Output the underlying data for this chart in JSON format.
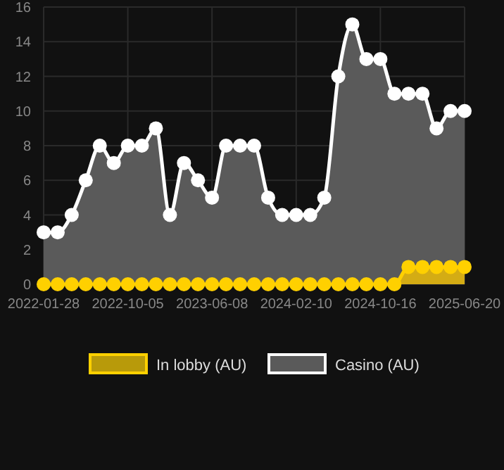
{
  "chart_data": {
    "type": "area",
    "categories": [
      "2022-01-28",
      null,
      null,
      null,
      null,
      null,
      "2022-10-05",
      null,
      null,
      null,
      null,
      null,
      "2023-06-08",
      null,
      null,
      null,
      null,
      null,
      "2024-02-10",
      null,
      null,
      null,
      null,
      null,
      "2024-10-16",
      null,
      null,
      null,
      null,
      null,
      "2025-06-20"
    ],
    "series": [
      {
        "name": "Casino (AU)",
        "color": "#ffffff",
        "values": [
          3,
          3,
          4,
          6,
          8,
          7,
          8,
          8,
          9,
          4,
          7,
          6,
          5,
          8,
          8,
          8,
          5,
          4,
          4,
          4,
          5,
          12,
          15,
          13,
          13,
          11,
          11,
          11,
          9,
          10,
          10
        ]
      },
      {
        "name": "In lobby (AU)",
        "color": "#ffd000",
        "values": [
          0,
          0,
          0,
          0,
          0,
          0,
          0,
          0,
          0,
          0,
          0,
          0,
          0,
          0,
          0,
          0,
          0,
          0,
          0,
          0,
          0,
          0,
          0,
          0,
          0,
          0,
          1,
          1,
          1,
          1,
          1
        ]
      }
    ],
    "ylim": [
      0,
      16
    ],
    "yticks": [
      0,
      2,
      4,
      6,
      8,
      10,
      12,
      14,
      16
    ],
    "grid": true,
    "legend": "bottom",
    "marker": "circle"
  }
}
